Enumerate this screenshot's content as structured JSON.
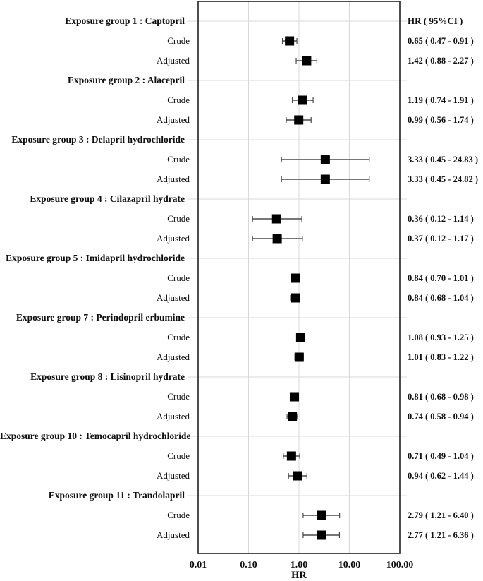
{
  "figure": {
    "background": "#ffffff",
    "marker_color": "#000000",
    "errorbar_color": "#4a4a4a",
    "gridline_color": "#d8d8d8",
    "border_color": "#2e2e2e",
    "text_color": "#0f0f0f"
  },
  "chart_data": {
    "type": "forest",
    "title": "",
    "xlabel": "HR",
    "right_header": "HR ( 95%CI )",
    "x_axis": {
      "scale": "log",
      "range": [
        0.01,
        100
      ],
      "ticks": [
        {
          "label": "0.01",
          "value": 0.01
        },
        {
          "label": "0.10",
          "value": 0.1
        },
        {
          "label": "1.00",
          "value": 1
        },
        {
          "label": "10.00",
          "value": 10
        },
        {
          "label": "100.00",
          "value": 100
        }
      ],
      "gridline_values": [
        0.1,
        1,
        10
      ]
    },
    "groups": [
      {
        "label": "Exposure group 1 : Captopril",
        "rows": [
          {
            "label": "Crude",
            "hr": 0.65,
            "ci_low": 0.47,
            "ci_high": 0.91,
            "display": "0.65 ( 0.47 - 0.91 )"
          },
          {
            "label": "Adjusted",
            "hr": 1.42,
            "ci_low": 0.88,
            "ci_high": 2.27,
            "display": "1.42 ( 0.88 - 2.27 )"
          }
        ]
      },
      {
        "label": "Exposure group 2 : Alacepril",
        "rows": [
          {
            "label": "Crude",
            "hr": 1.19,
            "ci_low": 0.74,
            "ci_high": 1.91,
            "display": "1.19 ( 0.74 - 1.91 )"
          },
          {
            "label": "Adjusted",
            "hr": 0.99,
            "ci_low": 0.56,
            "ci_high": 1.74,
            "display": "0.99 ( 0.56 - 1.74 )"
          }
        ]
      },
      {
        "label": "Exposure group 3 : Delapril hydrochloride",
        "rows": [
          {
            "label": "Crude",
            "hr": 3.33,
            "ci_low": 0.45,
            "ci_high": 24.83,
            "display": "3.33 ( 0.45 - 24.83 )"
          },
          {
            "label": "Adjusted",
            "hr": 3.33,
            "ci_low": 0.45,
            "ci_high": 24.82,
            "display": "3.33 ( 0.45 - 24.82 )"
          }
        ]
      },
      {
        "label": "Exposure group 4 : Cilazapril hydrate",
        "rows": [
          {
            "label": "Crude",
            "hr": 0.36,
            "ci_low": 0.12,
            "ci_high": 1.14,
            "display": "0.36 ( 0.12 - 1.14 )"
          },
          {
            "label": "Adjusted",
            "hr": 0.37,
            "ci_low": 0.12,
            "ci_high": 1.17,
            "display": "0.37 ( 0.12 - 1.17 )"
          }
        ]
      },
      {
        "label": "Exposure group 5 : Imidapril hydrochloride",
        "rows": [
          {
            "label": "Crude",
            "hr": 0.84,
            "ci_low": 0.7,
            "ci_high": 1.01,
            "display": "0.84 ( 0.70 - 1.01 )"
          },
          {
            "label": "Adjusted",
            "hr": 0.84,
            "ci_low": 0.68,
            "ci_high": 1.04,
            "display": "0.84 ( 0.68 - 1.04 )"
          }
        ]
      },
      {
        "label": "Exposure group 7 : Perindopril erbumine",
        "rows": [
          {
            "label": "Crude",
            "hr": 1.08,
            "ci_low": 0.93,
            "ci_high": 1.25,
            "display": "1.08 ( 0.93 - 1.25 )"
          },
          {
            "label": "Adjusted",
            "hr": 1.01,
            "ci_low": 0.83,
            "ci_high": 1.22,
            "display": "1.01 ( 0.83 - 1.22 )"
          }
        ]
      },
      {
        "label": "Exposure group 8 : Lisinopril hydrate",
        "rows": [
          {
            "label": "Crude",
            "hr": 0.81,
            "ci_low": 0.68,
            "ci_high": 0.98,
            "display": "0.81 ( 0.68 - 0.98 )"
          },
          {
            "label": "Adjusted",
            "hr": 0.74,
            "ci_low": 0.58,
            "ci_high": 0.94,
            "display": "0.74 ( 0.58 - 0.94 )"
          }
        ]
      },
      {
        "label": "Exposure group 10 : Temocapril hydrochloride",
        "rows": [
          {
            "label": "Crude",
            "hr": 0.71,
            "ci_low": 0.49,
            "ci_high": 1.04,
            "display": "0.71 ( 0.49 - 1.04 )"
          },
          {
            "label": "Adjusted",
            "hr": 0.94,
            "ci_low": 0.62,
            "ci_high": 1.44,
            "display": "0.94 ( 0.62 - 1.44 )"
          }
        ]
      },
      {
        "label": "Exposure group 11 : Trandolapril",
        "rows": [
          {
            "label": "Crude",
            "hr": 2.79,
            "ci_low": 1.21,
            "ci_high": 6.4,
            "display": "2.79 ( 1.21 - 6.40 )"
          },
          {
            "label": "Adjusted",
            "hr": 2.77,
            "ci_low": 1.21,
            "ci_high": 6.36,
            "display": "2.77 ( 1.21 - 6.36 )"
          }
        ]
      }
    ]
  }
}
